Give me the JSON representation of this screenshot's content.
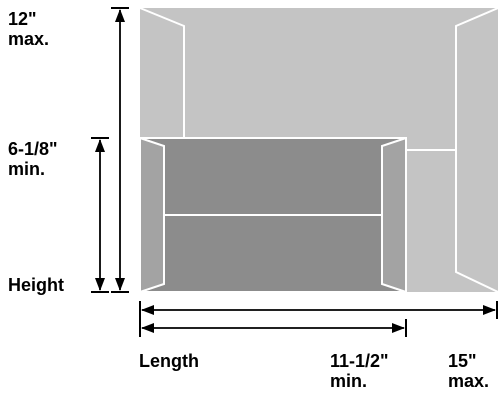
{
  "labels": {
    "height_max_value": "12\"",
    "height_max_qualifier": "max.",
    "height_min_value": "6-1/8\"",
    "height_min_qualifier": "min.",
    "height_axis": "Height",
    "length_axis": "Length",
    "length_min_value": "11-1/2\"",
    "length_min_qualifier": "min.",
    "length_max_value": "15\"",
    "length_max_qualifier": "max."
  },
  "colors": {
    "large_envelope": "#c4c4c4",
    "small_envelope": "#8c8c8c",
    "small_envelope_flap": "#a3a3a3",
    "outline": "#ffffff",
    "dimension_lines": "#000000",
    "text": "#000000"
  }
}
